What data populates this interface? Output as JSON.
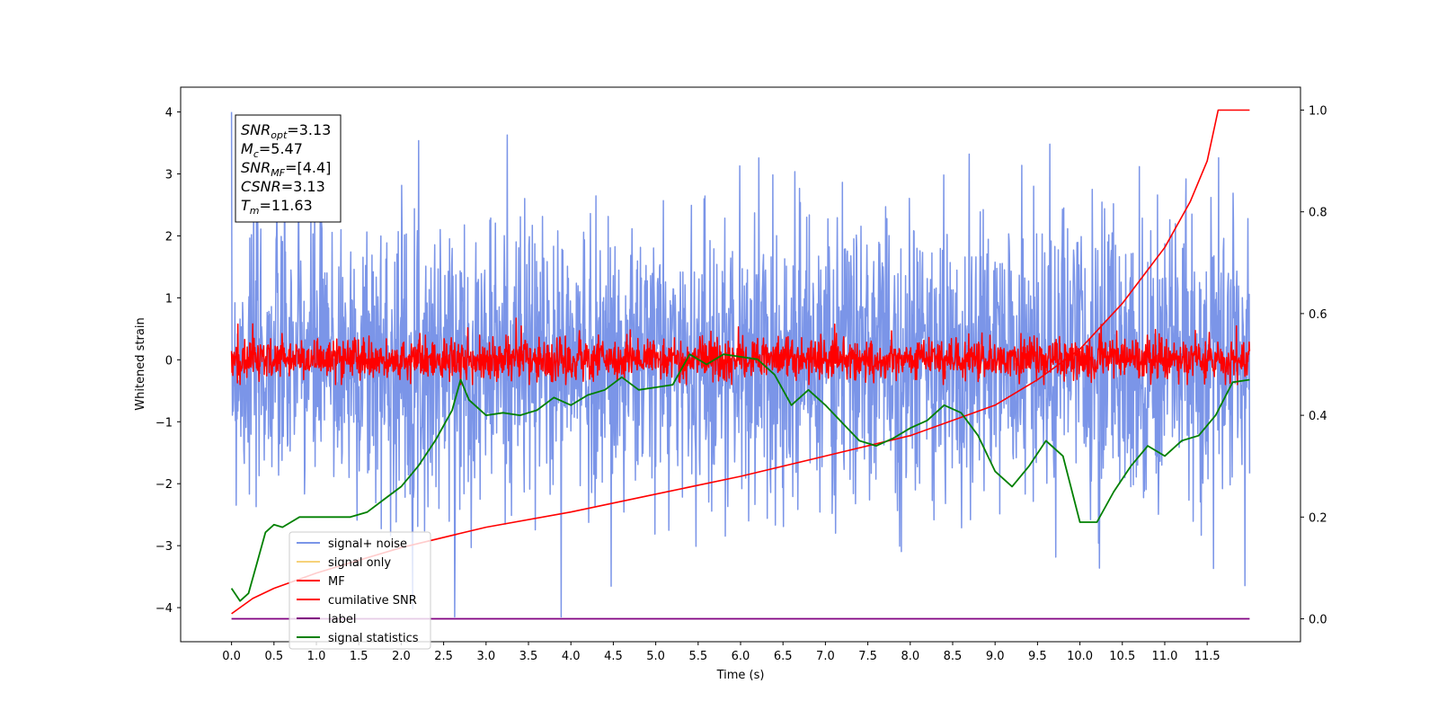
{
  "chart_data": {
    "type": "line",
    "xlabel": "Time (s)",
    "ylabel": "Whitened strain",
    "xlim": [
      -0.6,
      12.6
    ],
    "ylim": [
      -4.55,
      4.4
    ],
    "y2lim": [
      -0.045,
      1.045
    ],
    "xticks": [
      "0.0",
      "0.5",
      "1.0",
      "1.5",
      "2.0",
      "2.5",
      "3.0",
      "3.5",
      "4.0",
      "4.5",
      "5.0",
      "5.5",
      "6.0",
      "6.5",
      "7.0",
      "7.5",
      "8.0",
      "8.5",
      "9.0",
      "9.5",
      "10.0",
      "10.5",
      "11.0",
      "11.5"
    ],
    "yticks": [
      "4",
      "3",
      "2",
      "1",
      "0",
      "−1",
      "−2",
      "−3",
      "−4"
    ],
    "y2ticks": [
      "1.0",
      "0.8",
      "0.6",
      "0.4",
      "0.2",
      "0.0"
    ],
    "annotation": [
      {
        "base": "SNR",
        "sub": "opt",
        "value": "=3.13"
      },
      {
        "base": "M",
        "sub": "c",
        "value": "=5.47"
      },
      {
        "base": "SNR",
        "sub": "MF",
        "value": "=[4.4]"
      },
      {
        "base": "CSNR",
        "sub": "",
        "value": "=3.13"
      },
      {
        "base": "T",
        "sub": "m",
        "value": "=11.63"
      }
    ],
    "legend_position": "lower-left",
    "series": [
      {
        "name": "signal+ noise",
        "color": "#7b95e8",
        "axis": "left",
        "x_range": [
          0,
          12
        ],
        "amplitude_range": [
          -4.15,
          4.0
        ]
      },
      {
        "name": "signal only",
        "color": "#f6d27a",
        "axis": "left",
        "x_range": [
          0,
          12
        ]
      },
      {
        "name": "MF",
        "color": "#ff0000",
        "axis": "left",
        "x_range": [
          0,
          12
        ],
        "amplitude_range": [
          -0.4,
          1.0
        ]
      },
      {
        "name": "cumilative SNR",
        "color": "#ff0000",
        "axis": "right",
        "x": [
          0,
          0.25,
          0.5,
          1.0,
          1.5,
          2.0,
          3.0,
          4.0,
          5.0,
          6.0,
          7.0,
          8.0,
          9.0,
          9.5,
          10.0,
          10.5,
          11.0,
          11.3,
          11.5,
          11.63,
          12.0
        ],
        "values": [
          0.01,
          0.04,
          0.06,
          0.09,
          0.115,
          0.14,
          0.18,
          0.21,
          0.245,
          0.28,
          0.32,
          0.36,
          0.42,
          0.47,
          0.53,
          0.62,
          0.73,
          0.82,
          0.9,
          1.0,
          1.0
        ]
      },
      {
        "name": "label",
        "color": "#800080",
        "axis": "right",
        "x": [
          0,
          12
        ],
        "values": [
          0.0,
          0.0
        ]
      },
      {
        "name": "signal statistics",
        "color": "#008000",
        "axis": "right",
        "x": [
          0,
          0.1,
          0.2,
          0.3,
          0.4,
          0.5,
          0.6,
          0.7,
          0.8,
          1.0,
          1.2,
          1.4,
          1.6,
          1.8,
          2.0,
          2.2,
          2.4,
          2.6,
          2.7,
          2.8,
          3.0,
          3.2,
          3.4,
          3.6,
          3.8,
          4.0,
          4.2,
          4.4,
          4.6,
          4.8,
          5.0,
          5.2,
          5.4,
          5.6,
          5.8,
          6.0,
          6.2,
          6.4,
          6.6,
          6.8,
          7.0,
          7.2,
          7.4,
          7.6,
          7.8,
          8.0,
          8.2,
          8.4,
          8.6,
          8.8,
          9.0,
          9.2,
          9.4,
          9.6,
          9.8,
          10.0,
          10.2,
          10.4,
          10.6,
          10.8,
          11.0,
          11.2,
          11.4,
          11.6,
          11.8,
          12.0
        ],
        "values": [
          0.06,
          0.035,
          0.05,
          0.11,
          0.17,
          0.185,
          0.18,
          0.19,
          0.2,
          0.2,
          0.2,
          0.2,
          0.21,
          0.235,
          0.26,
          0.3,
          0.35,
          0.41,
          0.47,
          0.43,
          0.4,
          0.405,
          0.4,
          0.41,
          0.435,
          0.42,
          0.44,
          0.45,
          0.475,
          0.45,
          0.455,
          0.46,
          0.52,
          0.5,
          0.52,
          0.515,
          0.51,
          0.48,
          0.42,
          0.45,
          0.42,
          0.385,
          0.35,
          0.34,
          0.355,
          0.375,
          0.39,
          0.42,
          0.405,
          0.36,
          0.29,
          0.26,
          0.3,
          0.35,
          0.32,
          0.19,
          0.19,
          0.25,
          0.3,
          0.34,
          0.32,
          0.35,
          0.36,
          0.4,
          0.465,
          0.47
        ]
      }
    ]
  }
}
